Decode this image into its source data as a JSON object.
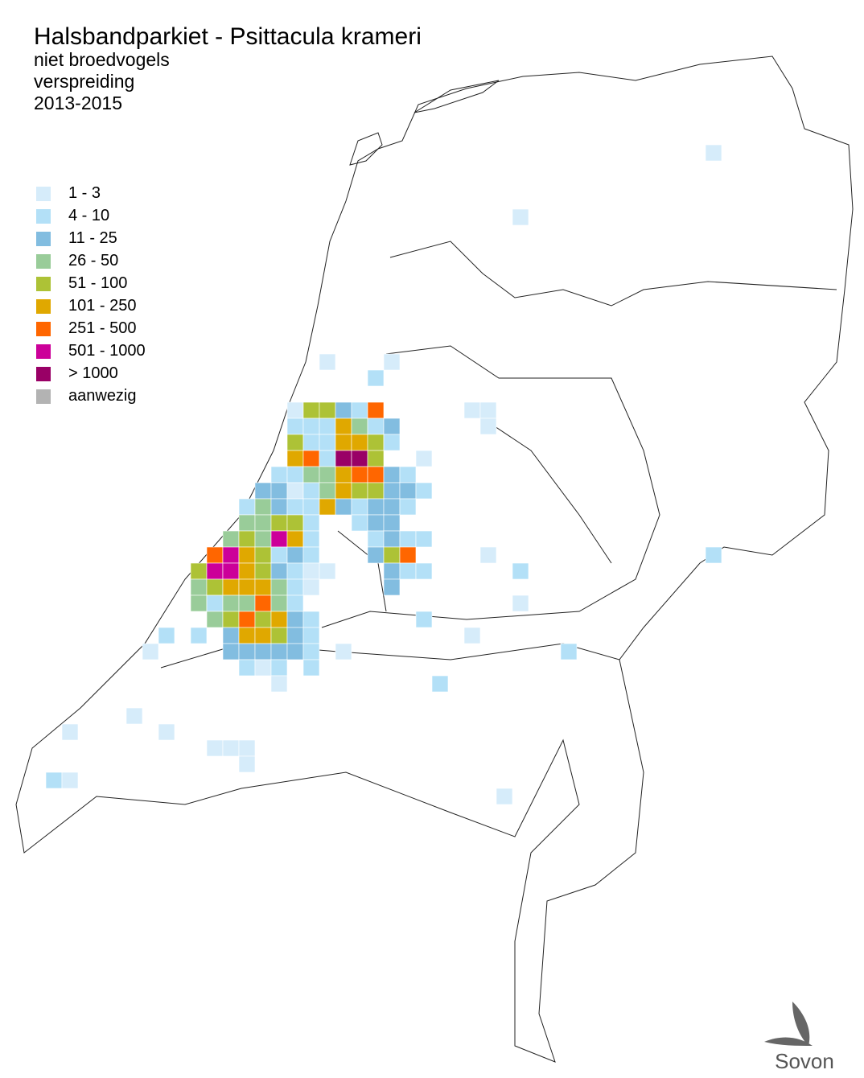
{
  "map": {
    "title": "Halsbandparkiet - Psittacula krameri",
    "subtitles": [
      "niet broedvogels",
      "verspreiding",
      "2013-2015"
    ],
    "legend": [
      {
        "label": "1 - 3",
        "color": "#d6ecfa"
      },
      {
        "label": "4 - 10",
        "color": "#b3e0f7"
      },
      {
        "label": "11 - 25",
        "color": "#82bde0"
      },
      {
        "label": "26 - 50",
        "color": "#99cc99"
      },
      {
        "label": "51 - 100",
        "color": "#adc236"
      },
      {
        "label": "101 - 250",
        "color": "#e0a800"
      },
      {
        "label": "251 - 500",
        "color": "#ff6600"
      },
      {
        "label": "501 - 1000",
        "color": "#cc0099"
      },
      {
        "label": "> 1000",
        "color": "#990066"
      },
      {
        "label": "aanwezig",
        "color": "#b3b3b3"
      }
    ],
    "logo": "Sovon",
    "cells": [
      [
        43,
        9,
        0
      ],
      [
        31,
        13,
        0
      ],
      [
        19,
        22,
        0
      ],
      [
        23,
        22,
        0
      ],
      [
        22,
        23,
        1
      ],
      [
        17,
        25,
        0
      ],
      [
        18,
        25,
        4
      ],
      [
        19,
        25,
        4
      ],
      [
        20,
        25,
        2
      ],
      [
        21,
        25,
        1
      ],
      [
        22,
        25,
        6
      ],
      [
        28,
        25,
        0
      ],
      [
        29,
        25,
        0
      ],
      [
        17,
        26,
        1
      ],
      [
        18,
        26,
        1
      ],
      [
        19,
        26,
        1
      ],
      [
        20,
        26,
        5
      ],
      [
        21,
        26,
        3
      ],
      [
        22,
        26,
        1
      ],
      [
        23,
        26,
        2
      ],
      [
        29,
        26,
        0
      ],
      [
        17,
        27,
        4
      ],
      [
        18,
        27,
        1
      ],
      [
        19,
        27,
        1
      ],
      [
        20,
        27,
        5
      ],
      [
        21,
        27,
        5
      ],
      [
        22,
        27,
        4
      ],
      [
        23,
        27,
        1
      ],
      [
        17,
        28,
        5
      ],
      [
        18,
        28,
        6
      ],
      [
        19,
        28,
        1
      ],
      [
        20,
        28,
        8
      ],
      [
        21,
        28,
        8
      ],
      [
        22,
        28,
        4
      ],
      [
        25,
        28,
        0
      ],
      [
        16,
        29,
        1
      ],
      [
        17,
        29,
        1
      ],
      [
        18,
        29,
        3
      ],
      [
        19,
        29,
        3
      ],
      [
        20,
        29,
        5
      ],
      [
        21,
        29,
        6
      ],
      [
        22,
        29,
        6
      ],
      [
        23,
        29,
        2
      ],
      [
        24,
        29,
        1
      ],
      [
        15,
        30,
        2
      ],
      [
        16,
        30,
        2
      ],
      [
        17,
        30,
        0
      ],
      [
        18,
        30,
        1
      ],
      [
        19,
        30,
        3
      ],
      [
        20,
        30,
        5
      ],
      [
        21,
        30,
        4
      ],
      [
        22,
        30,
        4
      ],
      [
        23,
        30,
        2
      ],
      [
        24,
        30,
        2
      ],
      [
        25,
        30,
        1
      ],
      [
        14,
        31,
        1
      ],
      [
        15,
        31,
        3
      ],
      [
        16,
        31,
        2
      ],
      [
        17,
        31,
        1
      ],
      [
        18,
        31,
        1
      ],
      [
        19,
        31,
        5
      ],
      [
        20,
        31,
        2
      ],
      [
        21,
        31,
        1
      ],
      [
        22,
        31,
        2
      ],
      [
        23,
        31,
        2
      ],
      [
        24,
        31,
        1
      ],
      [
        14,
        32,
        3
      ],
      [
        15,
        32,
        3
      ],
      [
        16,
        32,
        4
      ],
      [
        17,
        32,
        4
      ],
      [
        18,
        32,
        1
      ],
      [
        21,
        32,
        1
      ],
      [
        22,
        32,
        2
      ],
      [
        23,
        32,
        2
      ],
      [
        13,
        33,
        3
      ],
      [
        14,
        33,
        4
      ],
      [
        15,
        33,
        3
      ],
      [
        16,
        33,
        7
      ],
      [
        17,
        33,
        5
      ],
      [
        18,
        33,
        1
      ],
      [
        22,
        33,
        1
      ],
      [
        23,
        33,
        2
      ],
      [
        24,
        33,
        1
      ],
      [
        25,
        33,
        1
      ],
      [
        12,
        34,
        6
      ],
      [
        13,
        34,
        7
      ],
      [
        14,
        34,
        5
      ],
      [
        15,
        34,
        4
      ],
      [
        16,
        34,
        1
      ],
      [
        17,
        34,
        2
      ],
      [
        18,
        34,
        1
      ],
      [
        22,
        34,
        2
      ],
      [
        23,
        34,
        4
      ],
      [
        24,
        34,
        6
      ],
      [
        29,
        34,
        0
      ],
      [
        43,
        34,
        1
      ],
      [
        11,
        35,
        4
      ],
      [
        12,
        35,
        7
      ],
      [
        13,
        35,
        7
      ],
      [
        14,
        35,
        5
      ],
      [
        15,
        35,
        4
      ],
      [
        16,
        35,
        2
      ],
      [
        17,
        35,
        1
      ],
      [
        18,
        35,
        0
      ],
      [
        19,
        35,
        0
      ],
      [
        23,
        35,
        2
      ],
      [
        24,
        35,
        1
      ],
      [
        25,
        35,
        1
      ],
      [
        31,
        35,
        1
      ],
      [
        11,
        36,
        3
      ],
      [
        12,
        36,
        4
      ],
      [
        13,
        36,
        5
      ],
      [
        14,
        36,
        5
      ],
      [
        15,
        36,
        5
      ],
      [
        16,
        36,
        3
      ],
      [
        17,
        36,
        1
      ],
      [
        18,
        36,
        0
      ],
      [
        23,
        36,
        2
      ],
      [
        11,
        37,
        3
      ],
      [
        12,
        37,
        1
      ],
      [
        13,
        37,
        3
      ],
      [
        14,
        37,
        3
      ],
      [
        15,
        37,
        6
      ],
      [
        16,
        37,
        3
      ],
      [
        17,
        37,
        1
      ],
      [
        31,
        37,
        0
      ],
      [
        12,
        38,
        3
      ],
      [
        13,
        38,
        4
      ],
      [
        14,
        38,
        6
      ],
      [
        15,
        38,
        4
      ],
      [
        16,
        38,
        5
      ],
      [
        17,
        38,
        2
      ],
      [
        18,
        38,
        1
      ],
      [
        25,
        38,
        1
      ],
      [
        9,
        39,
        1
      ],
      [
        11,
        39,
        1
      ],
      [
        13,
        39,
        2
      ],
      [
        14,
        39,
        5
      ],
      [
        15,
        39,
        5
      ],
      [
        16,
        39,
        4
      ],
      [
        17,
        39,
        2
      ],
      [
        18,
        39,
        1
      ],
      [
        28,
        39,
        0
      ],
      [
        8,
        40,
        0
      ],
      [
        13,
        40,
        2
      ],
      [
        14,
        40,
        2
      ],
      [
        15,
        40,
        2
      ],
      [
        16,
        40,
        2
      ],
      [
        17,
        40,
        2
      ],
      [
        18,
        40,
        1
      ],
      [
        20,
        40,
        0
      ],
      [
        34,
        40,
        1
      ],
      [
        14,
        41,
        1
      ],
      [
        15,
        41,
        0
      ],
      [
        16,
        41,
        1
      ],
      [
        18,
        41,
        1
      ],
      [
        16,
        42,
        0
      ],
      [
        26,
        42,
        1
      ],
      [
        7,
        44,
        0
      ],
      [
        3,
        45,
        0
      ],
      [
        9,
        45,
        0
      ],
      [
        12,
        46,
        0
      ],
      [
        13,
        46,
        0
      ],
      [
        14,
        46,
        0
      ],
      [
        14,
        47,
        0
      ],
      [
        2,
        48,
        1
      ],
      [
        3,
        48,
        0
      ],
      [
        30,
        49,
        0
      ]
    ]
  }
}
